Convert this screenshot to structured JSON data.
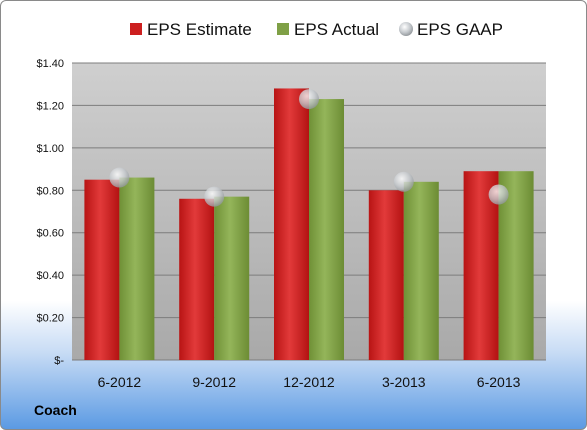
{
  "chart_data": {
    "type": "bar",
    "categories": [
      "6-2012",
      "9-2012",
      "12-2012",
      "3-2013",
      "6-2013"
    ],
    "series": [
      {
        "name": "EPS Estimate",
        "kind": "bar",
        "color": "#cc1f1f",
        "values": [
          0.85,
          0.76,
          1.28,
          0.8,
          0.89
        ]
      },
      {
        "name": "EPS Actual",
        "kind": "bar",
        "color": "#7fa046",
        "values": [
          0.86,
          0.77,
          1.23,
          0.84,
          0.89
        ]
      },
      {
        "name": "EPS GAAP",
        "kind": "point",
        "color": "#b8bcc0",
        "values": [
          0.86,
          0.77,
          1.23,
          0.84,
          0.78
        ]
      }
    ],
    "ylim": [
      0,
      1.4
    ],
    "yticks": [
      0,
      0.2,
      0.4,
      0.6,
      0.8,
      1.0,
      1.2,
      1.4
    ],
    "ytick_labels": [
      "$-",
      "$0.20",
      "$0.40",
      "$0.60",
      "$0.80",
      "$1.00",
      "$1.20",
      "$1.40"
    ],
    "grid": true,
    "legend_position": "top"
  },
  "footer": {
    "company": "Coach"
  }
}
